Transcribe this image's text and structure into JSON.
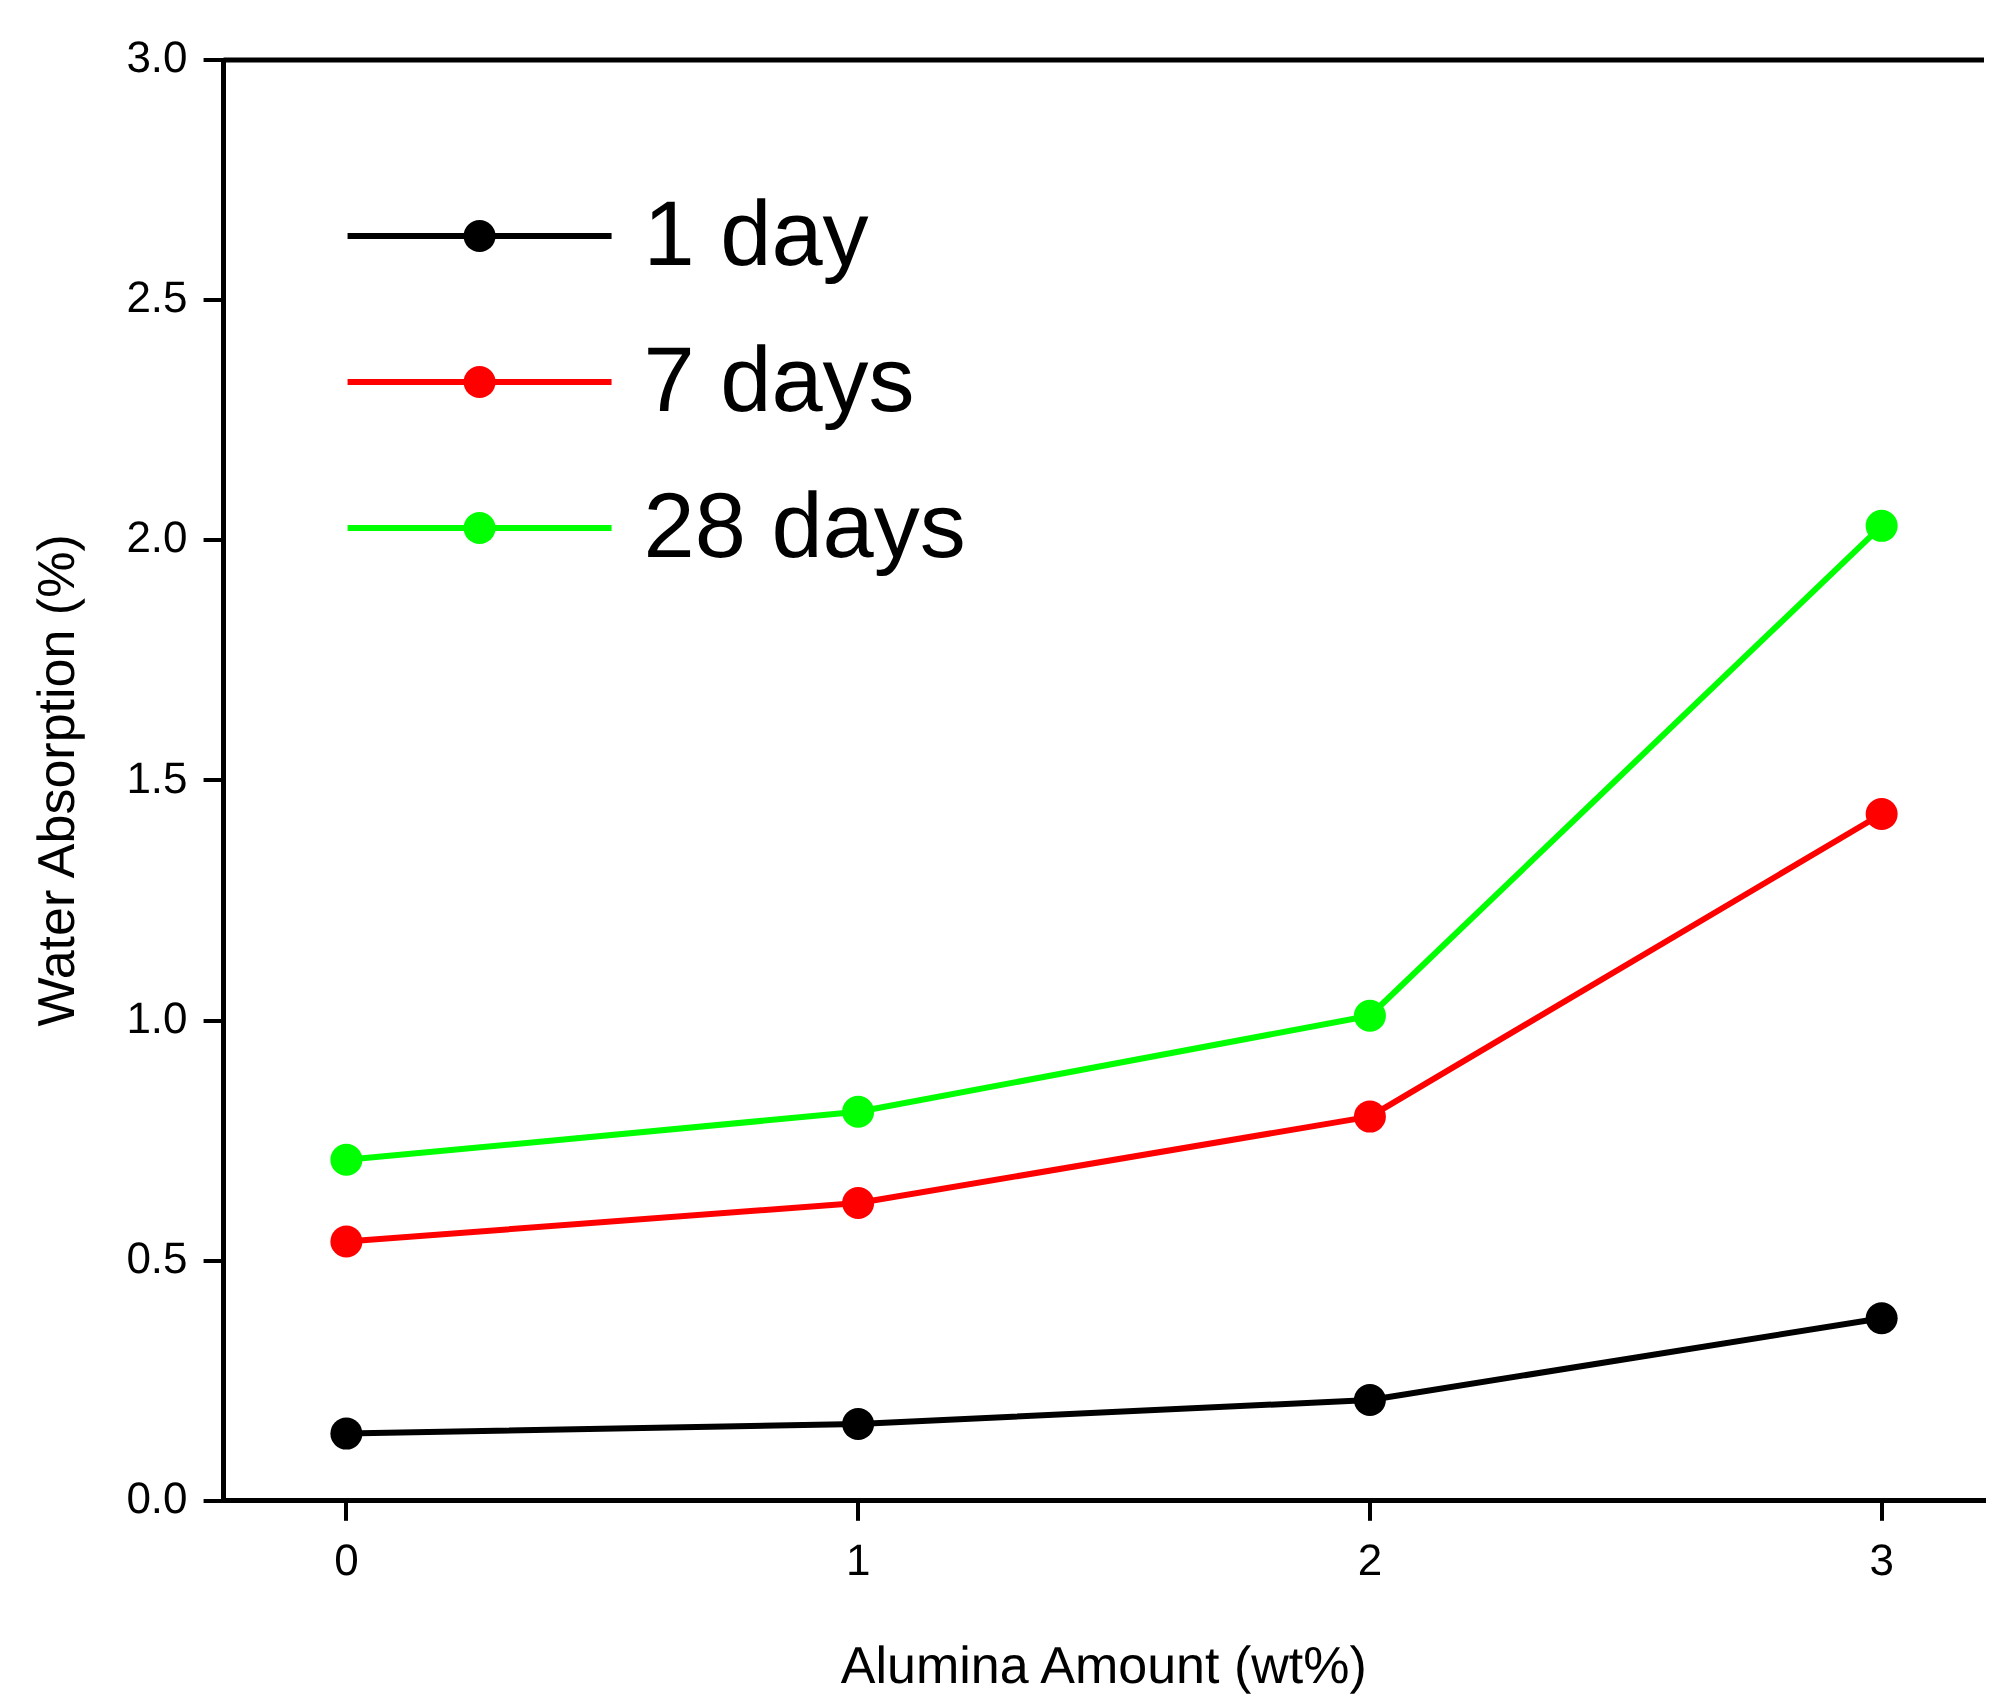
{
  "chart_data": {
    "type": "line",
    "xlabel": "Alumina Amount (wt%)",
    "ylabel": "Water Absorption (%)",
    "x": [
      0,
      1,
      2,
      3
    ],
    "series": [
      {
        "name": "1 day",
        "color": "#000000",
        "values": [
          0.14,
          0.16,
          0.21,
          0.38
        ]
      },
      {
        "name": "7 days",
        "color": "#ff0000",
        "values": [
          0.54,
          0.62,
          0.8,
          1.43
        ]
      },
      {
        "name": "28 days",
        "color": "#00ff00",
        "values": [
          0.71,
          0.81,
          1.01,
          2.03
        ]
      }
    ],
    "xlim": [
      -0.24,
      3.2
    ],
    "xticks": [
      0,
      1,
      2,
      3
    ],
    "ylim": [
      0,
      3.0
    ],
    "yticks": [
      {
        "value": 0,
        "label": "0.0"
      },
      {
        "value": 0.5,
        "label": "0.5"
      },
      {
        "value": 1,
        "label": "1.0"
      },
      {
        "value": 1.5,
        "label": "1.5"
      },
      {
        "value": 2,
        "label": "2.0"
      },
      {
        "value": 2.5,
        "label": "2.5"
      },
      {
        "value": 3,
        "label": "3.0"
      }
    ],
    "grid": false,
    "legend": "top left",
    "marker": "circle",
    "line_style": "solid"
  }
}
